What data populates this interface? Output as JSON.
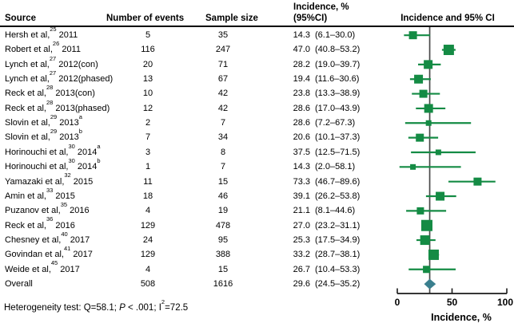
{
  "table": {
    "headers": {
      "source": "Source",
      "events": "Number of events",
      "sample": "Sample size",
      "incidence_line1": "Incidence, %",
      "incidence_line2": "(95%CI)",
      "plot": "Incidence and 95% CI"
    },
    "footer": {
      "prefix": "Heterogeneity test: Q=58.1; ",
      "p_italic": "P",
      "mid": " < .001; I",
      "sup": "2",
      "tail": "=72.5"
    }
  },
  "chart_data": {
    "type": "forest",
    "title": "Incidence and 95% CI",
    "xlabel": "Incidence, %",
    "xlim": [
      0,
      100
    ],
    "x_ticks": [
      0,
      50,
      100
    ],
    "reference_line": 29.6,
    "grid": false,
    "colors": {
      "marker": "#148b44",
      "diamond": "#3a7f8e",
      "ref_line": "#4a4a4a",
      "axis": "#1a1a1a"
    },
    "studies": [
      {
        "name": "Hersh et al,",
        "ref": "25",
        "year": "2011",
        "note": "",
        "events": "5",
        "sample": "35",
        "inc": "14.3",
        "ci": "(6.1–30.0)",
        "est": 14.3,
        "lo": 6.1,
        "hi": 30.0,
        "size": 10
      },
      {
        "name": "Robert et al,",
        "ref": "26",
        "year": "2011",
        "note": "",
        "events": "116",
        "sample": "247",
        "inc": "47.0",
        "ci": "(40.8–53.2)",
        "est": 47.0,
        "lo": 40.8,
        "hi": 53.2,
        "size": 13
      },
      {
        "name": "Lynch et al,",
        "ref": "27",
        "year": "2012(con)",
        "note": "",
        "events": "20",
        "sample": "71",
        "inc": "28.2",
        "ci": "(19.0–39.7)",
        "est": 28.2,
        "lo": 19.0,
        "hi": 39.7,
        "size": 11
      },
      {
        "name": "Lynch et al,",
        "ref": "27",
        "year": "2012(phased)",
        "note": "",
        "events": "13",
        "sample": "67",
        "inc": "19.4",
        "ci": "(11.6–30.6)",
        "est": 19.4,
        "lo": 11.6,
        "hi": 30.6,
        "size": 11
      },
      {
        "name": "Reck et al,",
        "ref": "28",
        "year": "2013(con)",
        "note": "",
        "events": "10",
        "sample": "42",
        "inc": "23.8",
        "ci": "(13.3–38.9)",
        "est": 23.8,
        "lo": 13.3,
        "hi": 38.9,
        "size": 10
      },
      {
        "name": "Reck et al,",
        "ref": "28",
        "year": "2013(phased)",
        "note": "",
        "events": "12",
        "sample": "42",
        "inc": "28.6",
        "ci": "(17.0–43.9)",
        "est": 28.6,
        "lo": 17.0,
        "hi": 43.9,
        "size": 11
      },
      {
        "name": "Slovin et al,",
        "ref": "29",
        "year": "2013",
        "note": "a",
        "events": "2",
        "sample": "7",
        "inc": "28.6",
        "ci": "(7.2–67.3)",
        "est": 28.6,
        "lo": 7.2,
        "hi": 67.3,
        "size": 7
      },
      {
        "name": "Slovin et al,",
        "ref": "29",
        "year": "2013",
        "note": "b",
        "events": "7",
        "sample": "34",
        "inc": "20.6",
        "ci": "(10.1–37.3)",
        "est": 20.6,
        "lo": 10.1,
        "hi": 37.3,
        "size": 10
      },
      {
        "name": "Horinouchi et al,",
        "ref": "30",
        "year": "2014",
        "note": "a",
        "events": "3",
        "sample": "8",
        "inc": "37.5",
        "ci": "(12.5–71.5)",
        "est": 37.5,
        "lo": 12.5,
        "hi": 71.5,
        "size": 7
      },
      {
        "name": "Horinouchi et al,",
        "ref": "30",
        "year": "2014",
        "note": "b",
        "events": "1",
        "sample": "7",
        "inc": "14.3",
        "ci": "(2.0–58.1)",
        "est": 14.3,
        "lo": 2.0,
        "hi": 58.1,
        "size": 7
      },
      {
        "name": "Yamazaki et al,",
        "ref": "32",
        "year": "2015",
        "note": "",
        "events": "11",
        "sample": "15",
        "inc": "73.3",
        "ci": "(46.7–89.6)",
        "est": 73.3,
        "lo": 46.7,
        "hi": 89.6,
        "size": 10
      },
      {
        "name": "Amin et al,",
        "ref": "33",
        "year": "2015",
        "note": "",
        "events": "18",
        "sample": "46",
        "inc": "39.1",
        "ci": "(26.2–53.8)",
        "est": 39.1,
        "lo": 26.2,
        "hi": 53.8,
        "size": 11
      },
      {
        "name": "Puzanov et al,",
        "ref": "35",
        "year": "2016",
        "note": "",
        "events": "4",
        "sample": "19",
        "inc": "21.1",
        "ci": "(8.1–44.6)",
        "est": 21.1,
        "lo": 8.1,
        "hi": 44.6,
        "size": 9
      },
      {
        "name": "Reck et al,",
        "ref": "36",
        "year": "2016",
        "note": "",
        "events": "129",
        "sample": "478",
        "inc": "27.0",
        "ci": "(23.2–31.1)",
        "est": 27.0,
        "lo": 23.2,
        "hi": 31.1,
        "size": 14
      },
      {
        "name": "Chesney et al,",
        "ref": "40",
        "year": "2017",
        "note": "",
        "events": "24",
        "sample": "95",
        "inc": "25.3",
        "ci": "(17.5–34.9)",
        "est": 25.3,
        "lo": 17.5,
        "hi": 34.9,
        "size": 12
      },
      {
        "name": "Govindan et al,",
        "ref": "41",
        "year": "2017",
        "note": "",
        "events": "129",
        "sample": "388",
        "inc": "33.2",
        "ci": "(28.7–38.1)",
        "est": 33.2,
        "lo": 28.7,
        "hi": 38.1,
        "size": 13
      },
      {
        "name": "Weide et al,",
        "ref": "45",
        "year": "2017",
        "note": "",
        "events": "4",
        "sample": "15",
        "inc": "26.7",
        "ci": "(10.4–53.3)",
        "est": 26.7,
        "lo": 10.4,
        "hi": 53.3,
        "size": 9
      }
    ],
    "overall": {
      "label": "Overall",
      "events": "508",
      "sample": "1616",
      "inc": "29.6",
      "ci": "(24.5–35.2)",
      "est": 29.6,
      "lo": 24.5,
      "hi": 35.2
    }
  }
}
